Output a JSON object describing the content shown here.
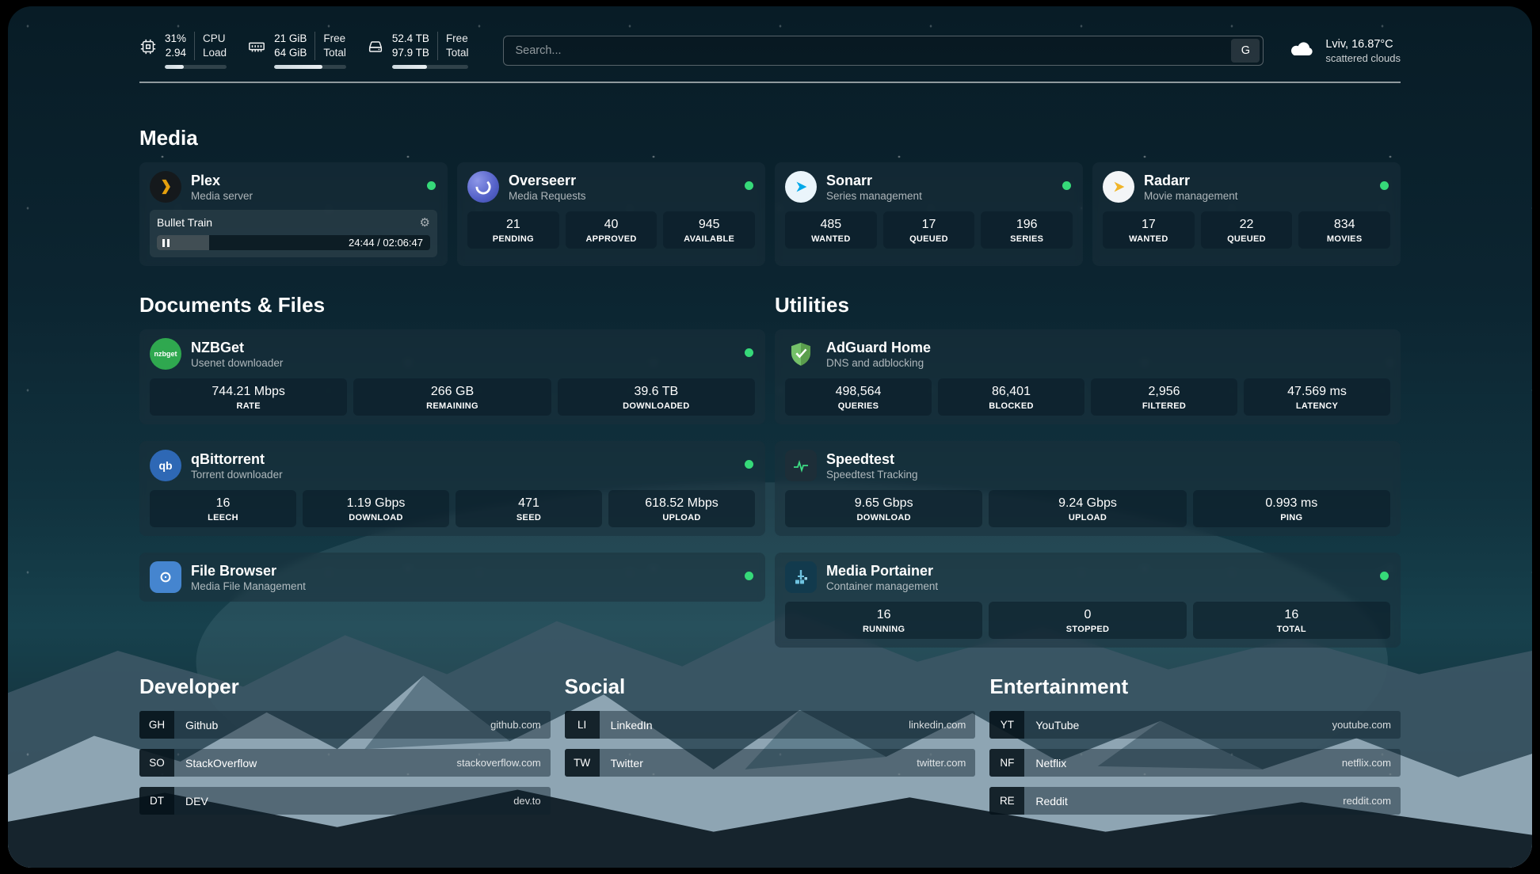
{
  "topbar": {
    "cpu": {
      "rows": [
        {
          "value": "31%",
          "label": "CPU"
        },
        {
          "value": "2.94",
          "label": "Load"
        }
      ],
      "progress": 31
    },
    "memory": {
      "rows": [
        {
          "value": "21 GiB",
          "label": "Free"
        },
        {
          "value": "64 GiB",
          "label": "Total"
        }
      ],
      "progress": 67
    },
    "disk": {
      "rows": [
        {
          "value": "52.4 TB",
          "label": "Free"
        },
        {
          "value": "97.9 TB",
          "label": "Total"
        }
      ],
      "progress": 46
    },
    "search": {
      "placeholder": "Search...",
      "button_label": "G"
    },
    "weather": {
      "location": "Lviv, 16.87°C",
      "condition": "scattered clouds"
    }
  },
  "sections": {
    "media": {
      "title": "Media",
      "services": [
        {
          "name": "Plex",
          "subtitle": "Media server",
          "now_playing": {
            "title": "Bullet Train",
            "time": "24:44 / 02:06:47",
            "progress": 19
          }
        },
        {
          "name": "Overseerr",
          "subtitle": "Media Requests",
          "stats": [
            {
              "value": "21",
              "label": "PENDING"
            },
            {
              "value": "40",
              "label": "APPROVED"
            },
            {
              "value": "945",
              "label": "AVAILABLE"
            }
          ]
        },
        {
          "name": "Sonarr",
          "subtitle": "Series management",
          "stats": [
            {
              "value": "485",
              "label": "WANTED"
            },
            {
              "value": "17",
              "label": "QUEUED"
            },
            {
              "value": "196",
              "label": "SERIES"
            }
          ]
        },
        {
          "name": "Radarr",
          "subtitle": "Movie management",
          "stats": [
            {
              "value": "17",
              "label": "WANTED"
            },
            {
              "value": "22",
              "label": "QUEUED"
            },
            {
              "value": "834",
              "label": "MOVIES"
            }
          ]
        }
      ]
    },
    "documents": {
      "title": "Documents & Files",
      "services": [
        {
          "name": "NZBGet",
          "subtitle": "Usenet downloader",
          "icon_text": "nzbget",
          "stats": [
            {
              "value": "744.21 Mbps",
              "label": "RATE"
            },
            {
              "value": "266 GB",
              "label": "REMAINING"
            },
            {
              "value": "39.6 TB",
              "label": "DOWNLOADED"
            }
          ]
        },
        {
          "name": "qBittorrent",
          "subtitle": "Torrent downloader",
          "icon_text": "qb",
          "stats": [
            {
              "value": "16",
              "label": "LEECH"
            },
            {
              "value": "1.19 Gbps",
              "label": "DOWNLOAD"
            },
            {
              "value": "471",
              "label": "SEED"
            },
            {
              "value": "618.52 Mbps",
              "label": "UPLOAD"
            }
          ]
        },
        {
          "name": "File Browser",
          "subtitle": "Media File Management"
        }
      ]
    },
    "utilities": {
      "title": "Utilities",
      "services": [
        {
          "name": "AdGuard Home",
          "subtitle": "DNS and adblocking",
          "stats": [
            {
              "value": "498,564",
              "label": "QUERIES"
            },
            {
              "value": "86,401",
              "label": "BLOCKED"
            },
            {
              "value": "2,956",
              "label": "FILTERED"
            },
            {
              "value": "47.569 ms",
              "label": "LATENCY"
            }
          ]
        },
        {
          "name": "Speedtest",
          "subtitle": "Speedtest Tracking",
          "stats": [
            {
              "value": "9.65 Gbps",
              "label": "DOWNLOAD"
            },
            {
              "value": "9.24 Gbps",
              "label": "UPLOAD"
            },
            {
              "value": "0.993 ms",
              "label": "PING"
            }
          ]
        },
        {
          "name": "Media Portainer",
          "subtitle": "Container management",
          "stats": [
            {
              "value": "16",
              "label": "RUNNING"
            },
            {
              "value": "0",
              "label": "STOPPED"
            },
            {
              "value": "16",
              "label": "TOTAL"
            }
          ]
        }
      ]
    }
  },
  "bookmarks": [
    {
      "title": "Developer",
      "items": [
        {
          "abbr": "GH",
          "name": "Github",
          "url": "github.com"
        },
        {
          "abbr": "SO",
          "name": "StackOverflow",
          "url": "stackoverflow.com"
        },
        {
          "abbr": "DT",
          "name": "DEV",
          "url": "dev.to"
        }
      ]
    },
    {
      "title": "Social",
      "items": [
        {
          "abbr": "LI",
          "name": "LinkedIn",
          "url": "linkedin.com"
        },
        {
          "abbr": "TW",
          "name": "Twitter",
          "url": "twitter.com"
        }
      ]
    },
    {
      "title": "Entertainment",
      "items": [
        {
          "abbr": "YT",
          "name": "YouTube",
          "url": "youtube.com"
        },
        {
          "abbr": "NF",
          "name": "Netflix",
          "url": "netflix.com"
        },
        {
          "abbr": "RE",
          "name": "Reddit",
          "url": "reddit.com"
        }
      ]
    }
  ]
}
